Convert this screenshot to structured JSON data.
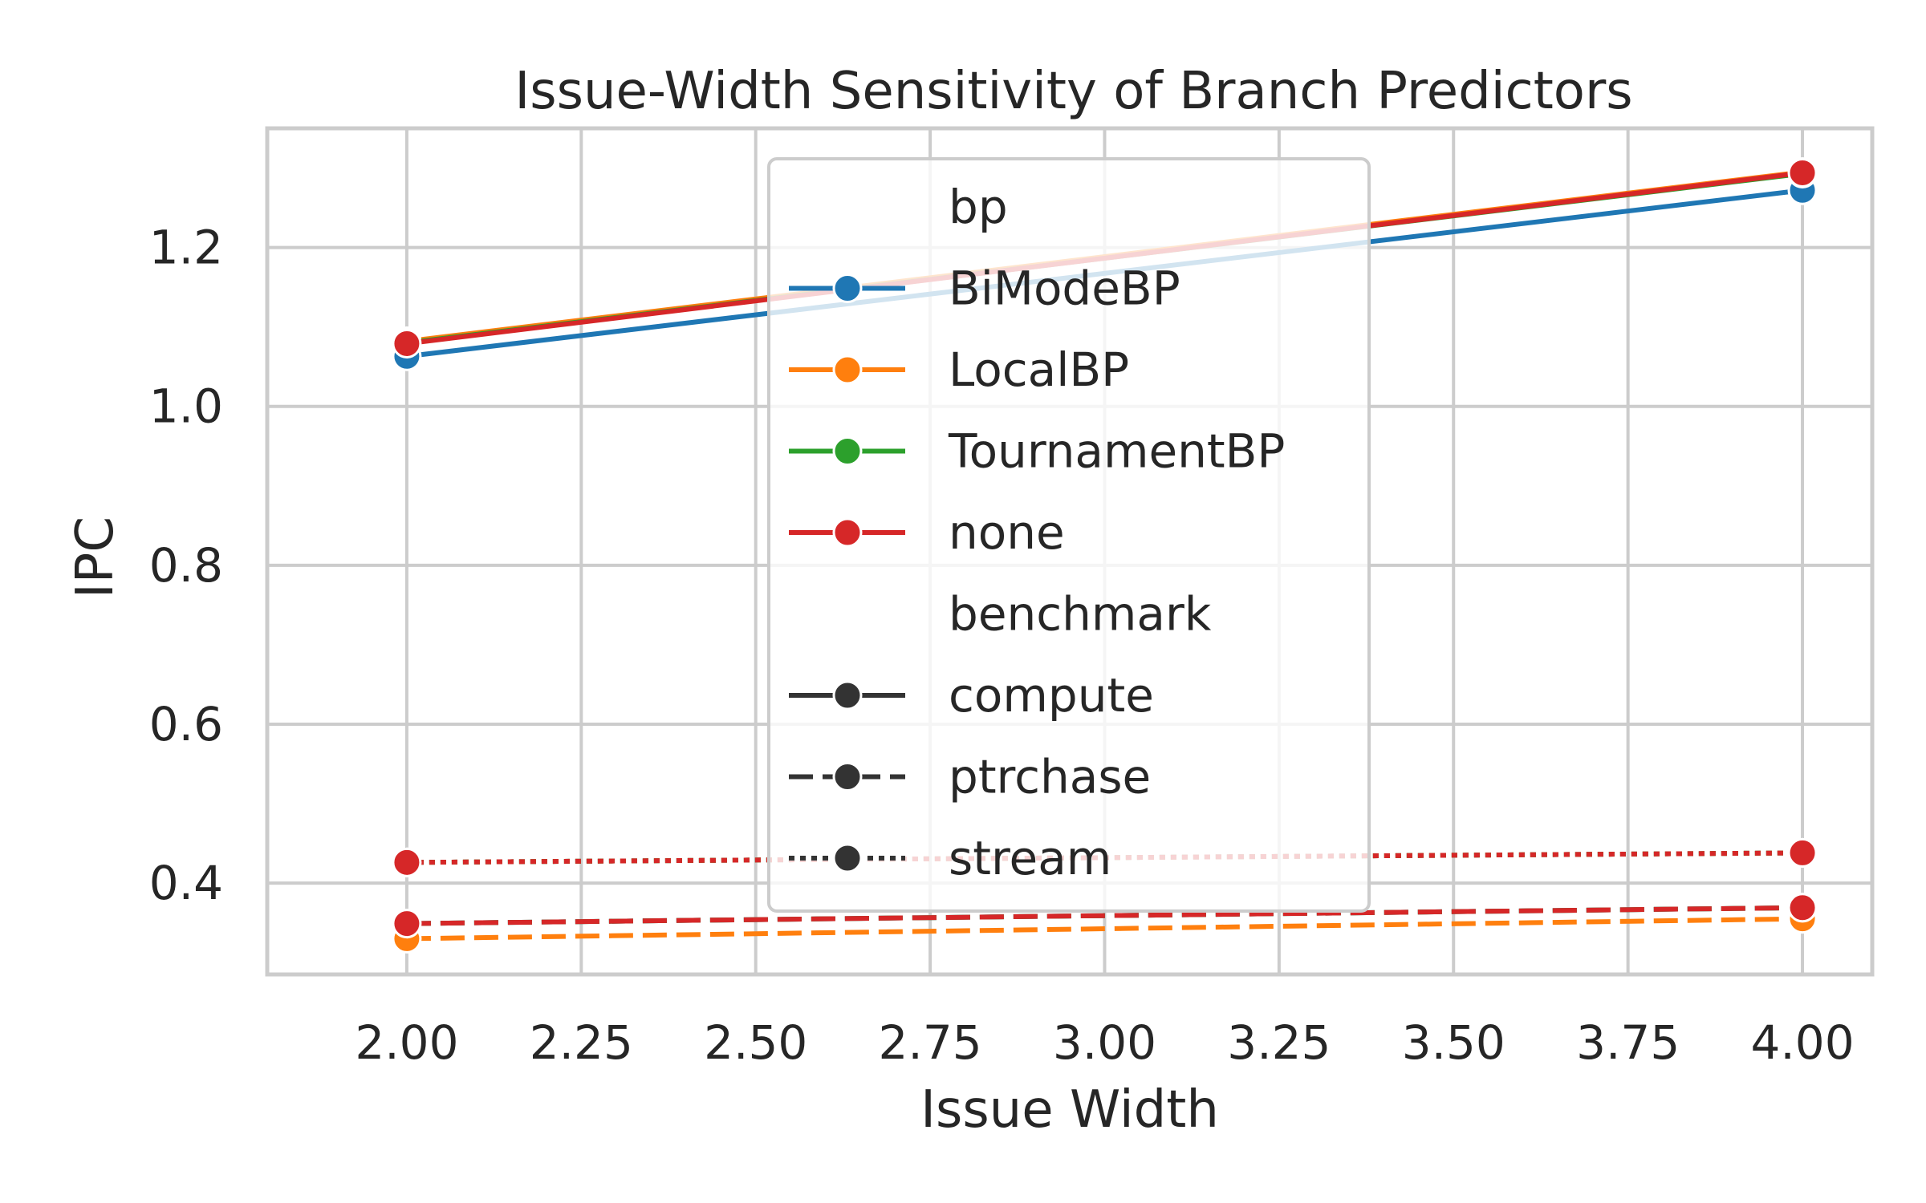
{
  "chart_data": {
    "type": "line",
    "title": "Issue-Width Sensitivity of Branch Predictors",
    "xlabel": "Issue Width",
    "ylabel": "IPC",
    "xlim": [
      1.8,
      4.1
    ],
    "ylim": [
      0.285,
      1.35
    ],
    "x_ticks": [
      2.0,
      2.25,
      2.5,
      2.75,
      3.0,
      3.25,
      3.5,
      3.75,
      4.0
    ],
    "x_tick_labels": [
      "2.00",
      "2.25",
      "2.50",
      "2.75",
      "3.00",
      "3.25",
      "3.50",
      "3.75",
      "4.00"
    ],
    "y_ticks": [
      0.4,
      0.6,
      0.8,
      1.0,
      1.2
    ],
    "y_tick_labels": [
      "0.4",
      "0.6",
      "0.8",
      "1.0",
      "1.2"
    ],
    "grid": true,
    "legend": {
      "placement": "upper-center",
      "hue_title": "bp",
      "hue_entries": [
        {
          "label": "BiModeBP",
          "color": "#1f77b4"
        },
        {
          "label": "LocalBP",
          "color": "#ff7f0e"
        },
        {
          "label": "TournamentBP",
          "color": "#2ca02c"
        },
        {
          "label": "none",
          "color": "#d62728"
        }
      ],
      "style_title": "benchmark",
      "style_entries": [
        {
          "label": "compute",
          "dash": "solid"
        },
        {
          "label": "ptrchase",
          "dash": "dashed"
        },
        {
          "label": "stream",
          "dash": "dotted"
        }
      ]
    },
    "series": [
      {
        "bp": "BiModeBP",
        "benchmark": "compute",
        "color": "#1f77b4",
        "dash": "solid",
        "x": [
          2,
          4
        ],
        "y": [
          1.063,
          1.272
        ]
      },
      {
        "bp": "LocalBP",
        "benchmark": "compute",
        "color": "#ff7f0e",
        "dash": "solid",
        "x": [
          2,
          4
        ],
        "y": [
          1.082,
          1.295
        ]
      },
      {
        "bp": "TournamentBP",
        "benchmark": "compute",
        "color": "#2ca02c",
        "dash": "solid",
        "x": [
          2,
          4
        ],
        "y": [
          1.08,
          1.293
        ]
      },
      {
        "bp": "none",
        "benchmark": "compute",
        "color": "#d62728",
        "dash": "solid",
        "x": [
          2,
          4
        ],
        "y": [
          1.079,
          1.294
        ]
      },
      {
        "bp": "BiModeBP",
        "benchmark": "ptrchase",
        "color": "#1f77b4",
        "dash": "dashed",
        "x": [
          2,
          4
        ],
        "y": [
          0.349,
          0.369
        ]
      },
      {
        "bp": "LocalBP",
        "benchmark": "ptrchase",
        "color": "#ff7f0e",
        "dash": "dashed",
        "x": [
          2,
          4
        ],
        "y": [
          0.33,
          0.355
        ]
      },
      {
        "bp": "TournamentBP",
        "benchmark": "ptrchase",
        "color": "#2ca02c",
        "dash": "dashed",
        "x": [
          2,
          4
        ],
        "y": [
          0.349,
          0.369
        ]
      },
      {
        "bp": "none",
        "benchmark": "ptrchase",
        "color": "#d62728",
        "dash": "dashed",
        "x": [
          2,
          4
        ],
        "y": [
          0.349,
          0.369
        ]
      },
      {
        "bp": "BiModeBP",
        "benchmark": "stream",
        "color": "#1f77b4",
        "dash": "dotted",
        "x": [
          2,
          4
        ],
        "y": [
          0.426,
          0.438
        ]
      },
      {
        "bp": "LocalBP",
        "benchmark": "stream",
        "color": "#ff7f0e",
        "dash": "dotted",
        "x": [
          2,
          4
        ],
        "y": [
          0.426,
          0.438
        ]
      },
      {
        "bp": "TournamentBP",
        "benchmark": "stream",
        "color": "#2ca02c",
        "dash": "dotted",
        "x": [
          2,
          4
        ],
        "y": [
          0.426,
          0.438
        ]
      },
      {
        "bp": "none",
        "benchmark": "stream",
        "color": "#d62728",
        "dash": "dotted",
        "x": [
          2,
          4
        ],
        "y": [
          0.426,
          0.438
        ]
      }
    ]
  }
}
